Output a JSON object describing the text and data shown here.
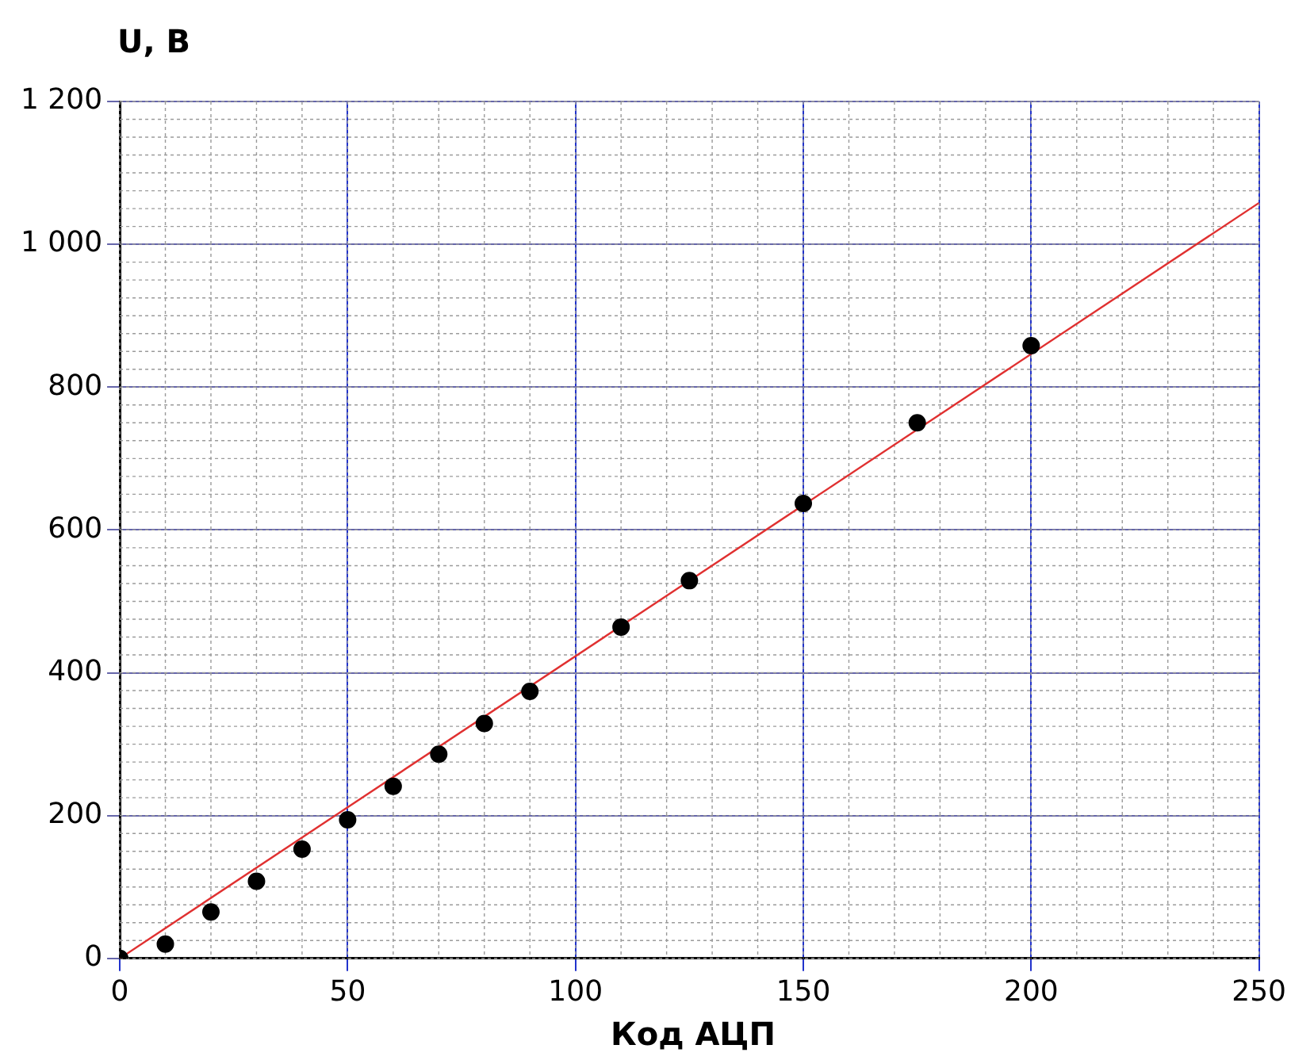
{
  "chart_data": {
    "type": "scatter",
    "xlabel": "Код АЦП",
    "ylabel": "U, B",
    "xlim": [
      0,
      250
    ],
    "xticks": [
      0,
      50,
      100,
      150,
      200,
      250
    ],
    "ylim": [
      0,
      1200
    ],
    "yticks": [
      0,
      200,
      400,
      600,
      800,
      {
        "value": 1000,
        "label": "1 000"
      },
      {
        "value": 1200,
        "label": "1 200"
      }
    ],
    "grid": true,
    "legend": false,
    "marker": "circle",
    "series": [
      {
        "color": "#000000",
        "x": [
          0,
          10,
          20,
          30,
          40,
          50,
          60,
          70,
          80,
          90,
          110,
          125,
          150,
          175,
          200
        ],
        "values": [
          0,
          20,
          65,
          108,
          153,
          194,
          241,
          286,
          329,
          374,
          464,
          529,
          637,
          750,
          858
        ]
      },
      {
        "type": "line",
        "color": "#e03030",
        "marker": "none",
        "x": [
          0,
          250
        ],
        "values": [
          0,
          1058
        ]
      }
    ]
  }
}
